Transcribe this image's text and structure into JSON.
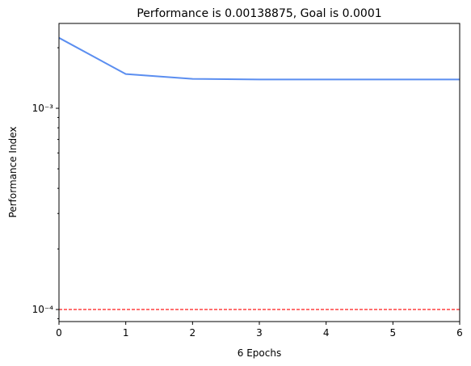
{
  "chart_data": {
    "type": "line",
    "title": "Performance is 0.00138875, Goal is 0.0001",
    "xlabel": "6 Epochs",
    "ylabel": "Performance Index",
    "x": [
      0,
      1,
      2,
      3,
      4,
      5,
      6
    ],
    "series": [
      {
        "color": "#5b8ef0",
        "values": [
          0.00224,
          0.00148,
          0.0014,
          0.00139,
          0.00139,
          0.00139,
          0.00139
        ]
      }
    ],
    "goal_line": {
      "value": 0.0001,
      "color": "#ff0000",
      "style": "dashed"
    },
    "xlim": [
      0,
      6
    ],
    "xticks": [
      0,
      1,
      2,
      3,
      4,
      5,
      6
    ],
    "ylim": [
      8.71e-05,
      0.002641
    ],
    "yscale": "log",
    "yticks": [
      {
        "value": 0.0001,
        "label": "10⁻⁴"
      },
      {
        "value": 0.001,
        "label": "10⁻³"
      }
    ],
    "yminorticks": [
      9e-05,
      0.0002,
      0.0003,
      0.0004,
      0.0005,
      0.0006,
      0.0007,
      0.0008,
      0.0009,
      0.002
    ]
  }
}
